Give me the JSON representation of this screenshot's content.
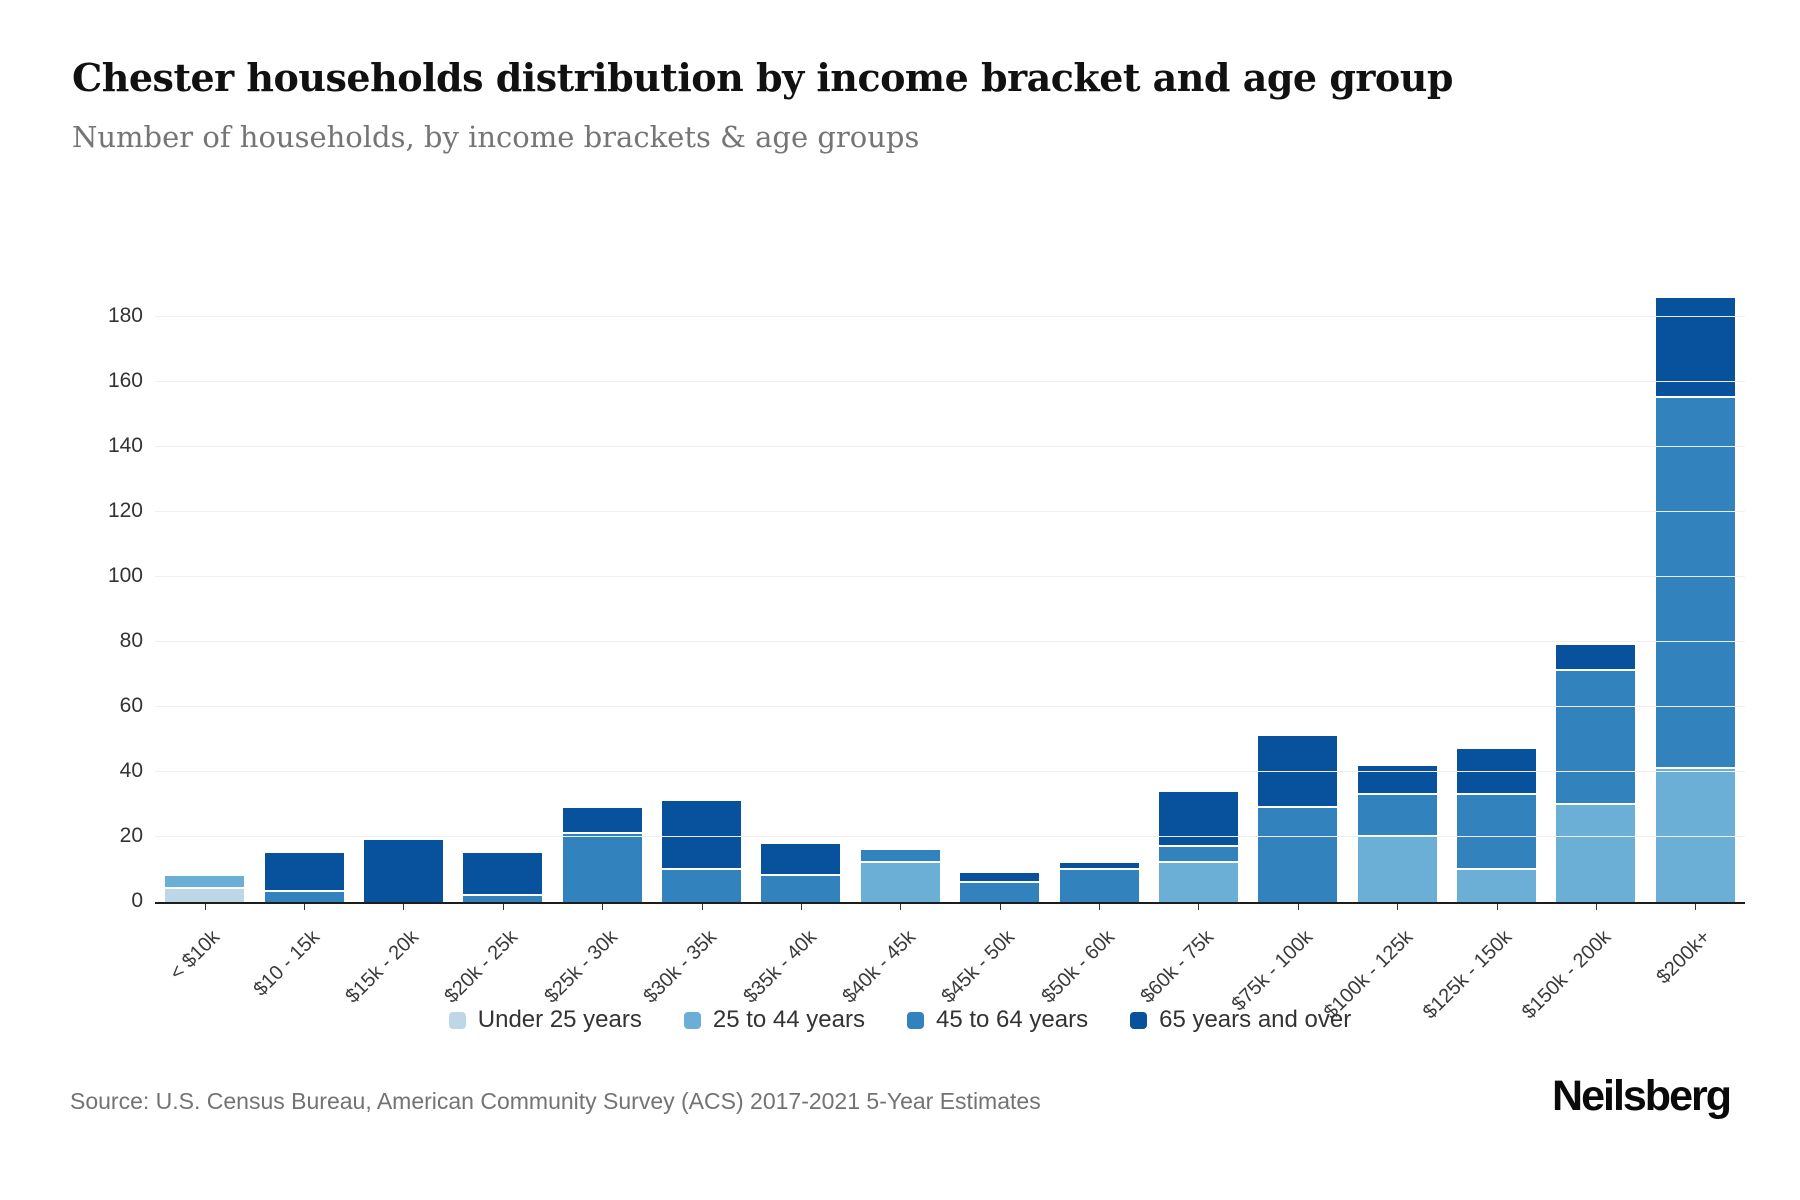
{
  "header": {
    "title": "Chester households distribution by income bracket and age group",
    "subtitle": "Number of households, by income brackets & age groups"
  },
  "chart_data": {
    "type": "bar",
    "stacked": true,
    "title": "Chester households distribution by income bracket and age group",
    "subtitle": "Number of households, by income brackets & age groups",
    "xlabel": "",
    "ylabel": "",
    "ylim": [
      0,
      200
    ],
    "yticks": [
      0,
      20,
      40,
      60,
      80,
      100,
      120,
      140,
      160,
      180
    ],
    "grid": true,
    "legend_position": "bottom",
    "categories": [
      "< $10k",
      "$10 - 15k",
      "$15k - 20k",
      "$20k - 25k",
      "$25k - 30k",
      "$30k - 35k",
      "$35k - 40k",
      "$40k - 45k",
      "$45k - 50k",
      "$50k - 60k",
      "$60k - 75k",
      "$75k - 100k",
      "$100k - 125k",
      "$125k - 150k",
      "$150k - 200k",
      "$200k+"
    ],
    "series": [
      {
        "name": "Under 25 years",
        "color": "#bdd7e7",
        "values": [
          4,
          0,
          0,
          0,
          0,
          0,
          0,
          0,
          0,
          0,
          0,
          0,
          0,
          0,
          0,
          0
        ]
      },
      {
        "name": "25 to 44 years",
        "color": "#6baed6",
        "values": [
          4,
          0,
          0,
          0,
          0,
          0,
          0,
          12,
          0,
          0,
          12,
          0,
          20,
          10,
          30,
          41
        ]
      },
      {
        "name": "45 to 64 years",
        "color": "#3182bd",
        "values": [
          0,
          3,
          0,
          2,
          21,
          10,
          8,
          4,
          6,
          10,
          5,
          29,
          13,
          23,
          41,
          114
        ]
      },
      {
        "name": "65 years and over",
        "color": "#08519c",
        "values": [
          0,
          12,
          19,
          13,
          8,
          21,
          10,
          0,
          3,
          2,
          17,
          22,
          9,
          14,
          8,
          31
        ]
      }
    ],
    "totals": [
      8,
      15,
      19,
      15,
      29,
      31,
      18,
      16,
      9,
      12,
      34,
      51,
      42,
      47,
      79,
      186
    ]
  },
  "footer": {
    "source": "Source: U.S. Census Bureau, American Community Survey (ACS) 2017-2021 5-Year Estimates",
    "logo": "Neilsberg"
  }
}
